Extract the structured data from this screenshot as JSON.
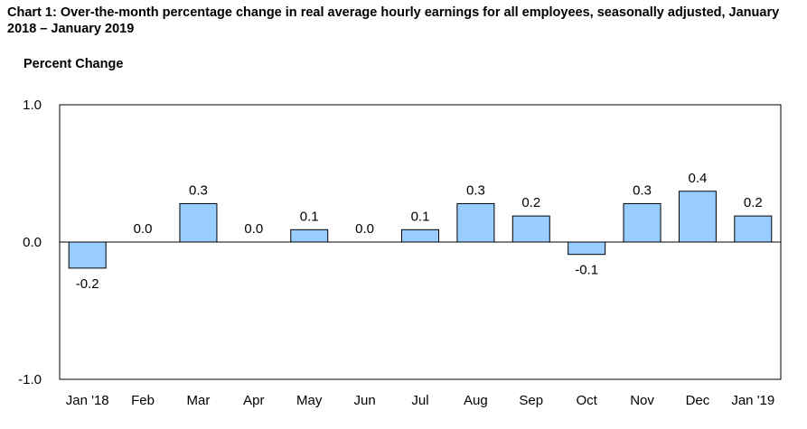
{
  "chart_data": {
    "type": "bar",
    "title": "Chart 1: Over-the-month percentage change in real average hourly earnings for all employees, seasonally adjusted, January 2018 – January 2019",
    "ylabel": "Percent Change",
    "xlabel": "",
    "ylim": [
      -1.0,
      1.0
    ],
    "yticks": [
      "1.0",
      "0.0",
      "-1.0"
    ],
    "categories": [
      "Jan '18",
      "Feb",
      "Mar",
      "Apr",
      "May",
      "Jun",
      "Jul",
      "Aug",
      "Sep",
      "Oct",
      "Nov",
      "Dec",
      "Jan '19"
    ],
    "values": [
      -0.19,
      0.0,
      0.28,
      0.0,
      0.09,
      0.0,
      0.09,
      0.28,
      0.19,
      -0.09,
      0.28,
      0.37,
      0.19
    ],
    "data_labels": [
      "-0.2",
      "0.0",
      "0.3",
      "0.0",
      "0.1",
      "0.0",
      "0.1",
      "0.3",
      "0.2",
      "-0.1",
      "0.3",
      "0.4",
      "0.2"
    ],
    "grid": false,
    "legend": "none",
    "colors": {
      "bar_fill": "#99ccff",
      "bar_stroke": "#000000"
    }
  }
}
